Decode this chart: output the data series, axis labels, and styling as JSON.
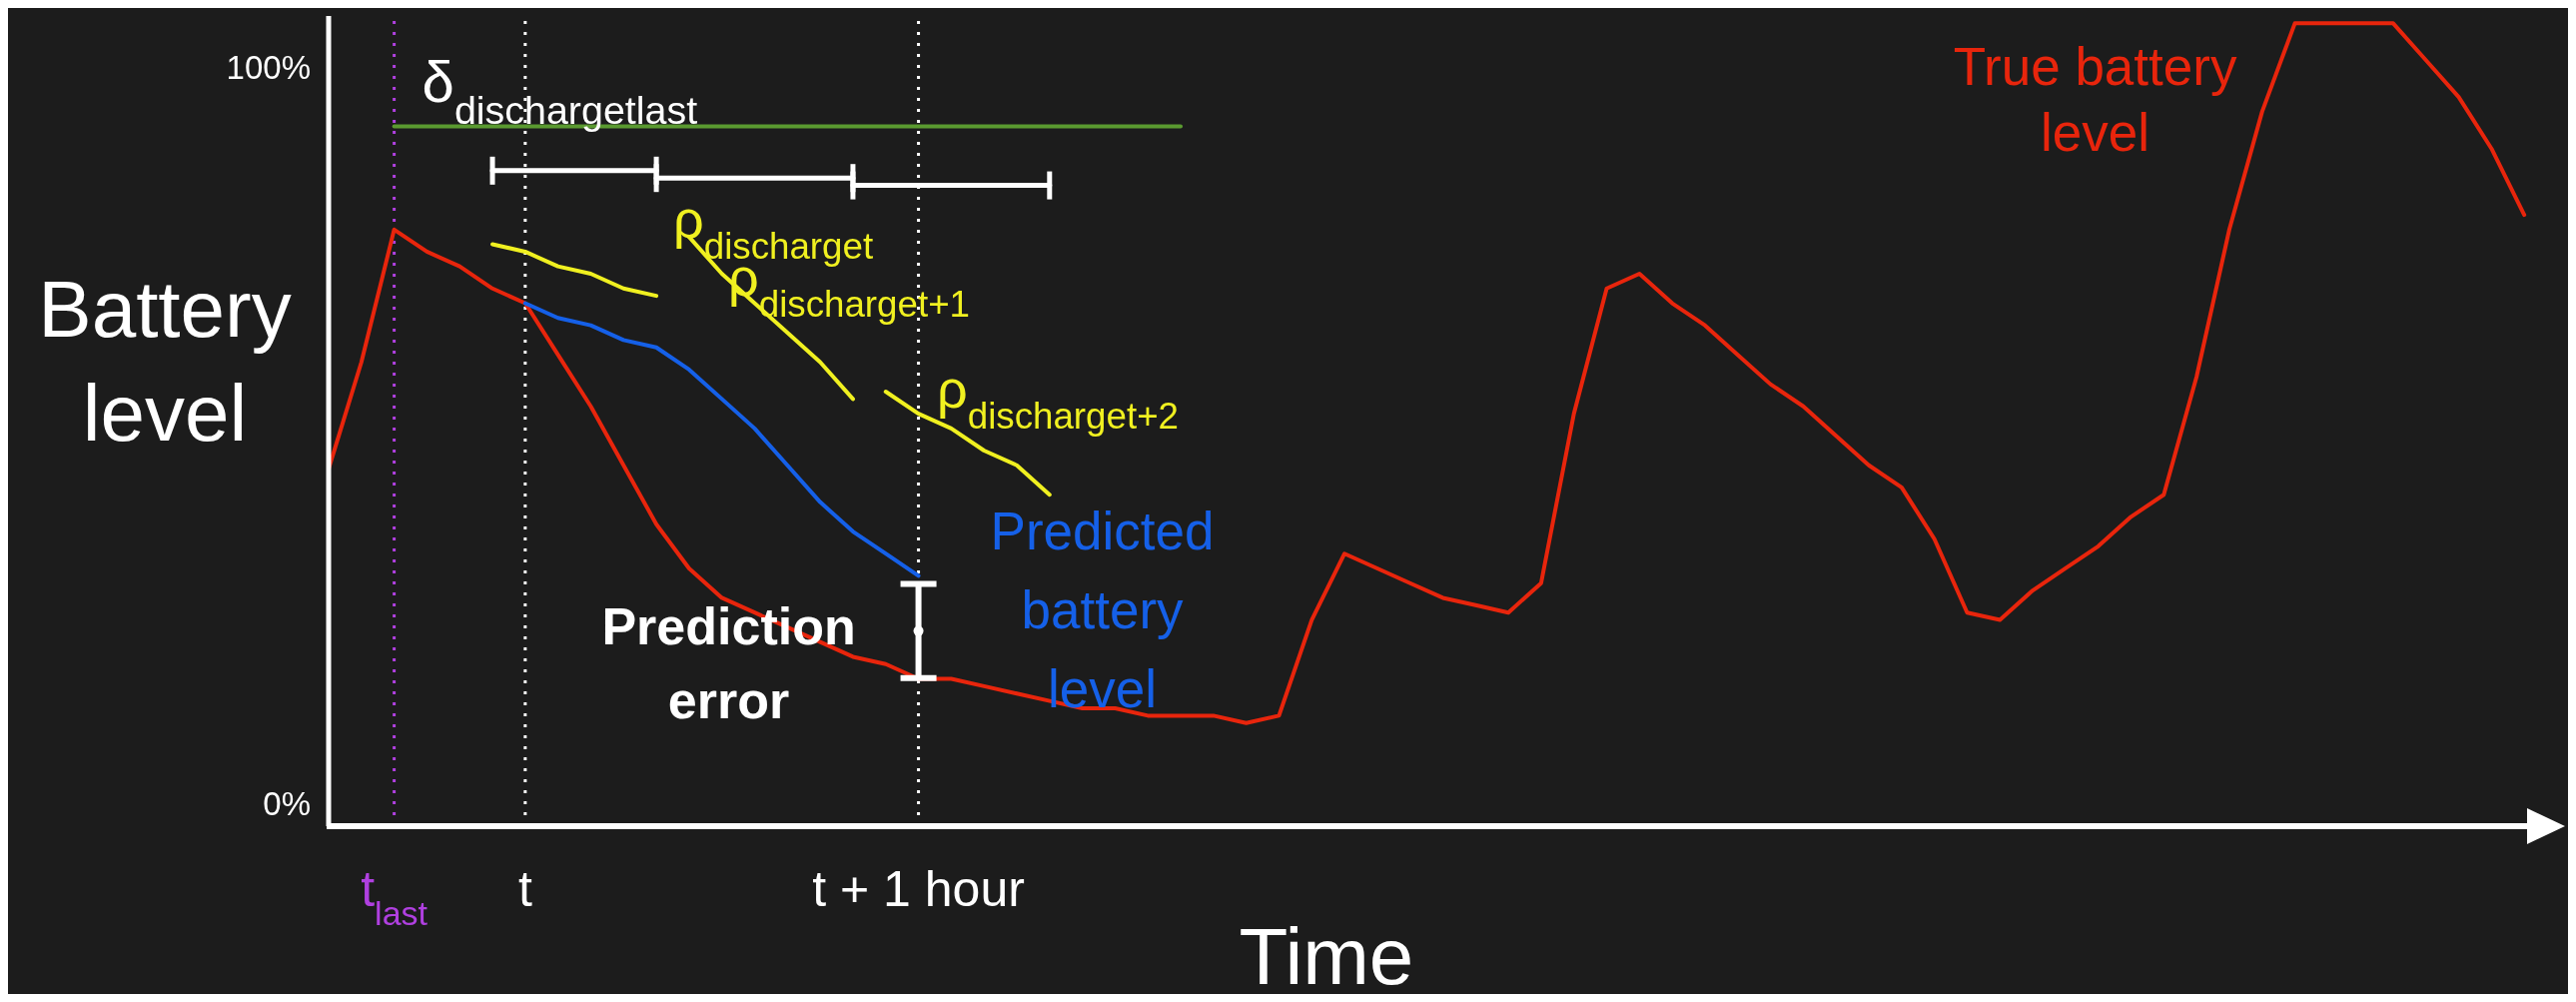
{
  "chart_data": {
    "type": "line",
    "xlabel": "Time",
    "ylabel": "Battery level",
    "categories": [
      null,
      null,
      "t$_{last}$",
      null,
      null,
      null,
      "t",
      null,
      null,
      null,
      null,
      null,
      null,
      null,
      null,
      null,
      null,
      null,
      "t + 1 hour",
      null,
      null,
      null,
      null,
      null,
      null,
      null,
      null,
      null,
      null,
      null,
      null,
      null,
      null,
      null,
      null,
      null,
      null,
      null,
      null,
      null,
      null,
      null,
      null,
      null,
      null,
      null,
      null,
      null,
      null,
      null,
      null,
      null,
      null,
      null,
      null,
      null,
      null,
      null,
      null,
      null,
      null,
      null,
      null,
      null,
      null,
      null,
      null,
      null,
      null
    ],
    "ylim": [
      -3,
      107
    ],
    "yticks": [
      {
        "value": 0,
        "label": "0%"
      },
      {
        "value": 100,
        "label": "100%"
      }
    ],
    "grid": false,
    "legend": false,
    "marker": "none",
    "line_style": "solid",
    "series": [
      {
        "name": "True battery level",
        "color": "#e8250c",
        "values": [
          45.5,
          60,
          78,
          75,
          73,
          70,
          68,
          61,
          54,
          46,
          38,
          32,
          28,
          26,
          24,
          22,
          20,
          19,
          17,
          17,
          16,
          15,
          14,
          13,
          13,
          12,
          12,
          12,
          11,
          12,
          25,
          34,
          32,
          30,
          28,
          27,
          26,
          30,
          53,
          70,
          72,
          68,
          65,
          61,
          57,
          54,
          50,
          46,
          43,
          36,
          26,
          25,
          29,
          32,
          35,
          39,
          42,
          58,
          78,
          94,
          106,
          106,
          106,
          106,
          101,
          96,
          89,
          80,
          null
        ]
      },
      {
        "name": "Predicted battery level",
        "color": "#1560e8",
        "values": [
          null,
          null,
          null,
          null,
          null,
          null,
          68,
          66,
          65,
          63,
          62,
          59,
          55,
          51,
          46,
          41,
          37,
          34,
          31,
          null,
          null,
          null,
          null,
          null,
          null,
          null,
          null,
          null,
          null,
          null,
          null,
          null,
          null,
          null,
          null,
          null,
          null,
          null,
          null,
          null,
          null,
          null,
          null,
          null,
          null,
          null,
          null,
          null,
          null,
          null,
          null,
          null,
          null,
          null,
          null,
          null,
          null,
          null,
          null,
          null,
          null,
          null,
          null,
          null,
          null,
          null,
          null,
          null,
          null
        ]
      },
      {
        "name": "δ$_{discharge}$$_{t}$$_{last}$",
        "color": "#5a9a30",
        "values": [
          null,
          null,
          92,
          92,
          92,
          92,
          92,
          92,
          92,
          92,
          92,
          92,
          92,
          92,
          92,
          92,
          92,
          92,
          92,
          92,
          92,
          92,
          92,
          92,
          92,
          92,
          92,
          null,
          null,
          null,
          null,
          null,
          null,
          null,
          null,
          null,
          null,
          null,
          null,
          null,
          null,
          null,
          null,
          null,
          null,
          null,
          null,
          null,
          null,
          null,
          null,
          null,
          null,
          null,
          null,
          null,
          null,
          null,
          null,
          null,
          null,
          null,
          null,
          null,
          null,
          null,
          null,
          null,
          null
        ]
      },
      {
        "color": "#f0f020",
        "values": [
          null,
          null,
          null,
          null,
          null,
          76,
          75,
          73,
          72,
          70,
          69,
          null,
          null,
          null,
          null,
          null,
          null,
          null,
          null,
          null,
          null,
          null,
          null,
          null,
          null,
          null,
          null,
          null,
          null,
          null,
          null,
          null,
          null,
          null,
          null,
          null,
          null,
          null,
          null,
          null,
          null,
          null,
          null,
          null,
          null,
          null,
          null,
          null,
          null,
          null,
          null,
          null,
          null,
          null,
          null,
          null,
          null,
          null,
          null,
          null,
          null,
          null,
          null,
          null,
          null,
          null,
          null,
          null,
          null
        ]
      },
      {
        "color": "#f0f020",
        "values": [
          null,
          null,
          null,
          null,
          null,
          null,
          null,
          null,
          null,
          null,
          null,
          77,
          72,
          68,
          64,
          60,
          55,
          null,
          null,
          null,
          null,
          null,
          null,
          null,
          null,
          null,
          null,
          null,
          null,
          null,
          null,
          null,
          null,
          null,
          null,
          null,
          null,
          null,
          null,
          null,
          null,
          null,
          null,
          null,
          null,
          null,
          null,
          null,
          null,
          null,
          null,
          null,
          null,
          null,
          null,
          null,
          null,
          null,
          null,
          null,
          null,
          null,
          null,
          null,
          null,
          null,
          null,
          null,
          null
        ]
      },
      {
        "color": "#f0f020",
        "values": [
          null,
          null,
          null,
          null,
          null,
          null,
          null,
          null,
          null,
          null,
          null,
          null,
          null,
          null,
          null,
          null,
          null,
          56,
          53,
          51,
          48,
          46,
          42,
          null,
          null,
          null,
          null,
          null,
          null,
          null,
          null,
          null,
          null,
          null,
          null,
          null,
          null,
          null,
          null,
          null,
          null,
          null,
          null,
          null,
          null,
          null,
          null,
          null,
          null,
          null,
          null,
          null,
          null,
          null,
          null,
          null,
          null,
          null,
          null,
          null,
          null,
          null,
          null,
          null,
          null,
          null,
          null,
          null,
          null
        ]
      },
      {
        "color": "#ffffff",
        "values": [
          null,
          null,
          null,
          null,
          null,
          86,
          86,
          86,
          86,
          86,
          86,
          null,
          null,
          null,
          null,
          null,
          null,
          null,
          null,
          null,
          null,
          null,
          null,
          null,
          null,
          null,
          null,
          null,
          null,
          null,
          null,
          null,
          null,
          null,
          null,
          null,
          null,
          null,
          null,
          null,
          null,
          null,
          null,
          null,
          null,
          null,
          null,
          null,
          null,
          null,
          null,
          null,
          null,
          null,
          null,
          null,
          null,
          null,
          null,
          null,
          null,
          null,
          null,
          null,
          null,
          null,
          null,
          null,
          null
        ]
      },
      {
        "color": "#ffffff",
        "values": [
          null,
          null,
          null,
          null,
          null,
          null,
          null,
          null,
          null,
          null,
          85,
          85,
          85,
          85,
          85,
          85,
          85,
          null,
          null,
          null,
          null,
          null,
          null,
          null,
          null,
          null,
          null,
          null,
          null,
          null,
          null,
          null,
          null,
          null,
          null,
          null,
          null,
          null,
          null,
          null,
          null,
          null,
          null,
          null,
          null,
          null,
          null,
          null,
          null,
          null,
          null,
          null,
          null,
          null,
          null,
          null,
          null,
          null,
          null,
          null,
          null,
          null,
          null,
          null,
          null,
          null,
          null,
          null,
          null
        ]
      },
      {
        "color": "#ffffff",
        "values": [
          null,
          null,
          null,
          null,
          null,
          null,
          null,
          null,
          null,
          null,
          null,
          null,
          null,
          null,
          null,
          null,
          84,
          84,
          84,
          84,
          84,
          84,
          84,
          null,
          null,
          null,
          null,
          null,
          null,
          null,
          null,
          null,
          null,
          null,
          null,
          null,
          null,
          null,
          null,
          null,
          null,
          null,
          null,
          null,
          null,
          null,
          null,
          null,
          null,
          null,
          null,
          null,
          null,
          null,
          null,
          null,
          null,
          null,
          null,
          null,
          null,
          null,
          null,
          null,
          null,
          null,
          null,
          null,
          null
        ]
      },
      {
        "type": "scatter",
        "color": "#ffffff",
        "marker": "circle",
        "values": [
          null,
          null,
          null,
          null,
          null,
          null,
          null,
          null,
          null,
          null,
          null,
          null,
          null,
          null,
          null,
          null,
          null,
          null,
          23.5,
          null,
          null,
          null,
          null,
          null,
          null,
          null,
          null,
          null,
          null,
          null,
          null,
          null,
          null,
          null,
          null,
          null,
          null,
          null,
          null,
          null,
          null,
          null,
          null,
          null,
          null,
          null,
          null,
          null,
          null,
          null,
          null,
          null,
          null,
          null,
          null,
          null,
          null,
          null,
          null,
          null,
          null,
          null,
          null,
          null,
          null,
          null,
          null,
          null,
          null
        ],
        "errors": [
          null,
          null,
          null,
          null,
          null,
          null,
          null,
          null,
          null,
          null,
          null,
          null,
          null,
          null,
          null,
          null,
          null,
          null,
          6.4,
          null,
          null,
          null,
          null,
          null,
          null,
          null,
          null,
          null,
          null,
          null,
          null,
          null,
          null,
          null,
          null,
          null,
          null,
          null,
          null,
          null,
          null,
          null,
          null,
          null,
          null,
          null,
          null,
          null,
          null,
          null,
          null,
          null,
          null,
          null,
          null,
          null,
          null,
          null,
          null,
          null,
          null,
          null,
          null,
          null,
          null,
          null,
          null,
          null,
          null
        ]
      }
    ],
    "ref_lines": [
      {
        "axis": "x",
        "value": "t$_{last}$",
        "color": "#b040e0",
        "line_style": "dotted"
      },
      {
        "axis": "x",
        "value": "t",
        "color": "#ffffff",
        "line_style": "dotted"
      },
      {
        "axis": "x",
        "value": "t + 1 hour",
        "color": "#ffffff",
        "line_style": "dotted"
      }
    ],
    "annotations": [
      {
        "text": "Prediction error",
        "x": "t + 1 hour",
        "y": 23.5
      },
      "ρ$_{discharge}$$_{t}$",
      "ρ$_{discharge}$$_{t+1}$",
      "ρ$_{discharge}$$_{t+2}$"
    ]
  }
}
